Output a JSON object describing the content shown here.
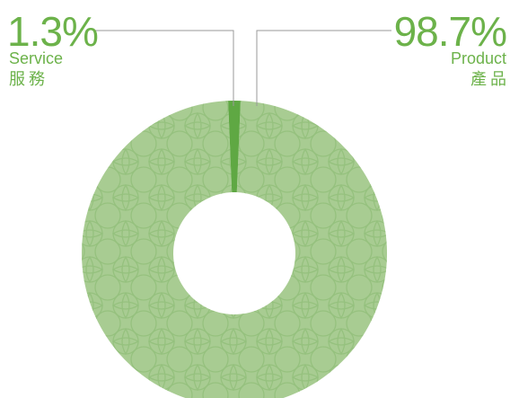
{
  "colors": {
    "product_fill": "#a8cc92",
    "pattern_stroke": "#8fbd76",
    "service_fill": "#5fa843",
    "label_color": "#6cb24a",
    "leader_color": "#9a9a9a"
  },
  "chart_data": {
    "type": "pie",
    "donut": true,
    "slices": [
      {
        "label_en": "Service",
        "label_zh": "服務",
        "value": 1.3,
        "value_label": "1.3%"
      },
      {
        "label_en": "Product",
        "label_zh": "產品",
        "value": 98.7,
        "value_label": "98.7%"
      }
    ]
  }
}
